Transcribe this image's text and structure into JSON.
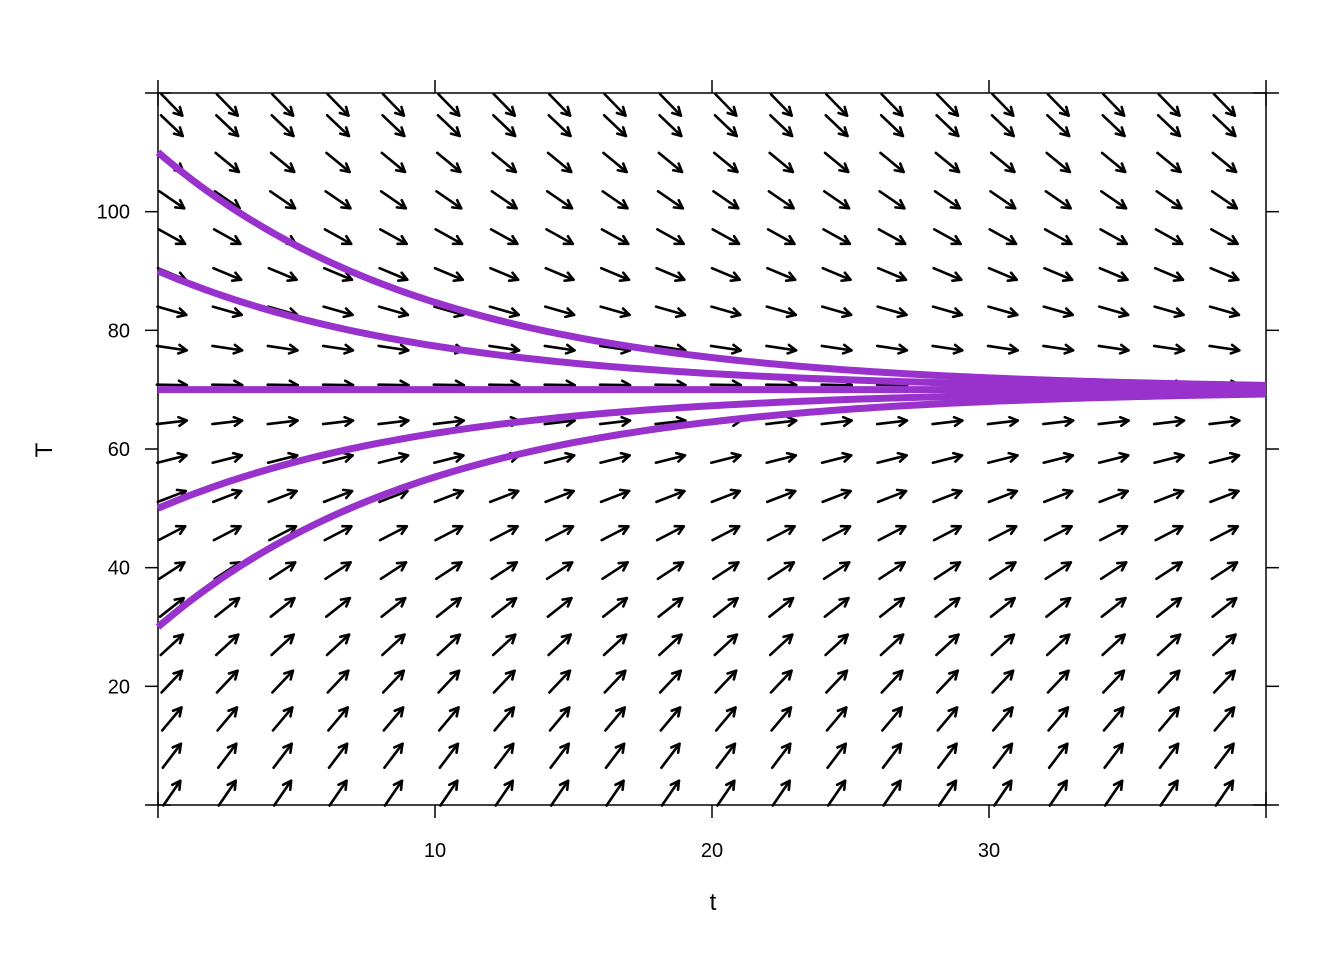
{
  "chart_data": {
    "type": "line",
    "subtype": "slope-field-with-solution-curves",
    "title": "",
    "xlabel": "t",
    "ylabel": "T",
    "xlim": [
      0,
      40
    ],
    "ylim": [
      0,
      120
    ],
    "x_ticks": [
      10,
      20,
      30
    ],
    "y_ticks": [
      20,
      40,
      60,
      80,
      100
    ],
    "grid": false,
    "legend": "none",
    "equation_model": {
      "rate_constant": 0.1,
      "equilibrium": 70
    },
    "slope_field": {
      "t_values": [
        0.5,
        2.5,
        4.5,
        6.5,
        8.5,
        10.5,
        12.5,
        14.5,
        16.5,
        18.5,
        20.5,
        22.5,
        24.5,
        26.5,
        28.5,
        30.5,
        32.5,
        34.5,
        36.5,
        38.5
      ],
      "T_values": [
        2,
        8.3,
        14.5,
        20.8,
        27,
        33.3,
        39.5,
        45.8,
        52,
        58.3,
        64.5,
        70.8,
        77,
        83.3,
        89.5,
        95.8,
        102,
        108.3,
        114.5,
        118
      ],
      "color": "#000000"
    },
    "series": [
      {
        "initial": 110,
        "t": [
          0,
          5,
          10,
          15,
          20,
          25,
          30,
          35,
          40
        ],
        "values": [
          110,
          94.3,
          84.7,
          78.9,
          75.4,
          73.3,
          72.0,
          71.2,
          70.7
        ]
      },
      {
        "initial": 90,
        "t": [
          0,
          5,
          10,
          15,
          20,
          25,
          30,
          35,
          40
        ],
        "values": [
          90,
          82.1,
          77.4,
          74.5,
          72.7,
          71.6,
          71.0,
          70.6,
          70.4
        ]
      },
      {
        "initial": 70,
        "t": [
          0,
          5,
          10,
          15,
          20,
          25,
          30,
          35,
          40
        ],
        "values": [
          70,
          70,
          70,
          70,
          70,
          70,
          70,
          70,
          70
        ]
      },
      {
        "initial": 50,
        "t": [
          0,
          5,
          10,
          15,
          20,
          25,
          30,
          35,
          40
        ],
        "values": [
          50,
          57.9,
          62.6,
          65.5,
          67.3,
          68.4,
          69.0,
          69.4,
          69.6
        ]
      },
      {
        "initial": 30,
        "t": [
          0,
          5,
          10,
          15,
          20,
          25,
          30,
          35,
          40
        ],
        "values": [
          30,
          45.7,
          55.3,
          61.1,
          64.6,
          66.7,
          68.0,
          68.8,
          69.3
        ]
      }
    ],
    "series_color": "#9932CC"
  }
}
